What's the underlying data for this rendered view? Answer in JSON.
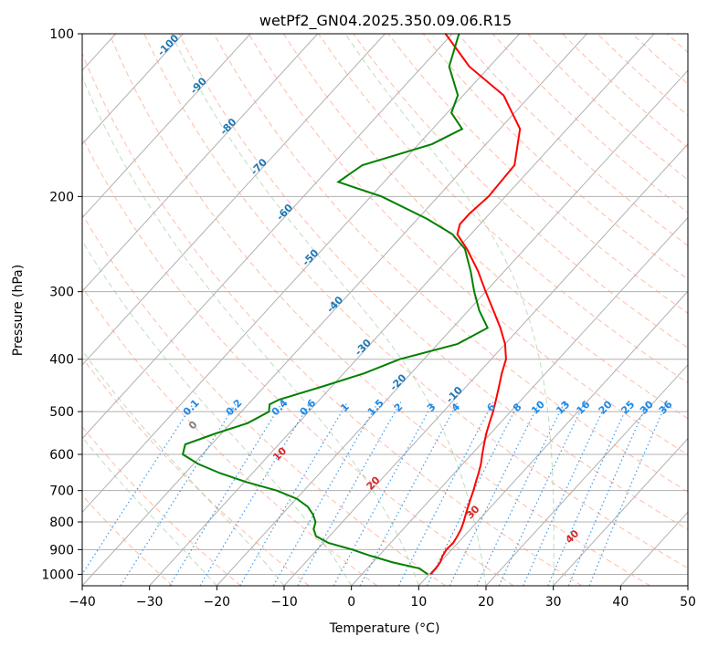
{
  "chart_data": {
    "type": "line",
    "title": "wetPf2_GN04.2025.350.09.06.R15",
    "xlabel": "Temperature (°C)",
    "ylabel": "Pressure (hPa)",
    "xlim": [
      -40,
      50
    ],
    "ylim": [
      1050,
      100
    ],
    "y_scale": "log",
    "grid": true,
    "x_ticks": [
      -40,
      -30,
      -20,
      -10,
      0,
      10,
      20,
      30,
      40,
      50
    ],
    "y_ticks": [
      100,
      200,
      300,
      400,
      500,
      600,
      700,
      800,
      900,
      1000
    ],
    "series": [
      {
        "color": "#ff0000",
        "points": [
          {
            "p": 1000,
            "t": 10.2
          },
          {
            "p": 975,
            "t": 10.2
          },
          {
            "p": 950,
            "t": 10.0
          },
          {
            "p": 925,
            "t": 9.5
          },
          {
            "p": 900,
            "t": 9.2
          },
          {
            "p": 875,
            "t": 9.3
          },
          {
            "p": 850,
            "t": 9.0
          },
          {
            "p": 825,
            "t": 8.6
          },
          {
            "p": 800,
            "t": 8.0
          },
          {
            "p": 775,
            "t": 7.3
          },
          {
            "p": 750,
            "t": 6.6
          },
          {
            "p": 725,
            "t": 5.9
          },
          {
            "p": 700,
            "t": 5.2
          },
          {
            "p": 675,
            "t": 4.4
          },
          {
            "p": 650,
            "t": 3.6
          },
          {
            "p": 625,
            "t": 2.7
          },
          {
            "p": 600,
            "t": 1.6
          },
          {
            "p": 575,
            "t": 0.5
          },
          {
            "p": 550,
            "t": -0.6
          },
          {
            "p": 525,
            "t": -1.6
          },
          {
            "p": 500,
            "t": -2.6
          },
          {
            "p": 475,
            "t": -3.8
          },
          {
            "p": 450,
            "t": -5.1
          },
          {
            "p": 425,
            "t": -6.5
          },
          {
            "p": 400,
            "t": -7.8
          },
          {
            "p": 375,
            "t": -10.0
          },
          {
            "p": 350,
            "t": -12.9
          },
          {
            "p": 325,
            "t": -16.3
          },
          {
            "p": 300,
            "t": -20.0
          },
          {
            "p": 275,
            "t": -23.9
          },
          {
            "p": 250,
            "t": -28.6
          },
          {
            "p": 235,
            "t": -32.0
          },
          {
            "p": 225,
            "t": -33.0
          },
          {
            "p": 215,
            "t": -33.0
          },
          {
            "p": 200,
            "t": -32.5
          },
          {
            "p": 175,
            "t": -32.9
          },
          {
            "p": 150,
            "t": -37.0
          },
          {
            "p": 130,
            "t": -44.0
          },
          {
            "p": 115,
            "t": -53.0
          },
          {
            "p": 100,
            "t": -61.0
          }
        ]
      },
      {
        "color": "#008000",
        "points": [
          {
            "p": 1000,
            "t": 9.8
          },
          {
            "p": 975,
            "t": 7.7
          },
          {
            "p": 950,
            "t": 2.9
          },
          {
            "p": 925,
            "t": -1.1
          },
          {
            "p": 900,
            "t": -4.8
          },
          {
            "p": 875,
            "t": -9.2
          },
          {
            "p": 850,
            "t": -12.0
          },
          {
            "p": 825,
            "t": -13.3
          },
          {
            "p": 800,
            "t": -14.0
          },
          {
            "p": 775,
            "t": -15.4
          },
          {
            "p": 750,
            "t": -17.2
          },
          {
            "p": 725,
            "t": -19.9
          },
          {
            "p": 700,
            "t": -24.0
          },
          {
            "p": 675,
            "t": -29.7
          },
          {
            "p": 650,
            "t": -34.8
          },
          {
            "p": 625,
            "t": -39.3
          },
          {
            "p": 600,
            "t": -42.9
          },
          {
            "p": 575,
            "t": -43.9
          },
          {
            "p": 550,
            "t": -41.0
          },
          {
            "p": 525,
            "t": -37.5
          },
          {
            "p": 500,
            "t": -35.9
          },
          {
            "p": 485,
            "t": -36.8
          },
          {
            "p": 475,
            "t": -36.0
          },
          {
            "p": 450,
            "t": -31.5
          },
          {
            "p": 425,
            "t": -27.0
          },
          {
            "p": 400,
            "t": -23.6
          },
          {
            "p": 375,
            "t": -17.1
          },
          {
            "p": 350,
            "t": -14.8
          },
          {
            "p": 325,
            "t": -18.4
          },
          {
            "p": 300,
            "t": -21.7
          },
          {
            "p": 275,
            "t": -25.0
          },
          {
            "p": 250,
            "t": -28.9
          },
          {
            "p": 235,
            "t": -32.7
          },
          {
            "p": 220,
            "t": -38.6
          },
          {
            "p": 200,
            "t": -48.4
          },
          {
            "p": 188,
            "t": -56.8
          },
          {
            "p": 175,
            "t": -55.5
          },
          {
            "p": 160,
            "t": -48.0
          },
          {
            "p": 150,
            "t": -45.6
          },
          {
            "p": 140,
            "t": -49.4
          },
          {
            "p": 130,
            "t": -50.8
          },
          {
            "p": 115,
            "t": -56.0
          },
          {
            "p": 100,
            "t": -59.0
          }
        ]
      }
    ],
    "isotherm_labels": [
      "-100",
      "-90",
      "-80",
      "-70",
      "-60",
      "-50",
      "-40",
      "-30",
      "-20",
      "-10"
    ],
    "mixing_ratio_labels": [
      "0.1",
      "0.2",
      "0.4",
      "0.6",
      "1",
      "1.5",
      "2",
      "3",
      "4",
      "6",
      "8",
      "10",
      "13",
      "16",
      "20",
      "25",
      "30",
      "36"
    ],
    "dry_adiabat_labels": [
      "0",
      "10",
      "20",
      "30",
      "40"
    ]
  }
}
